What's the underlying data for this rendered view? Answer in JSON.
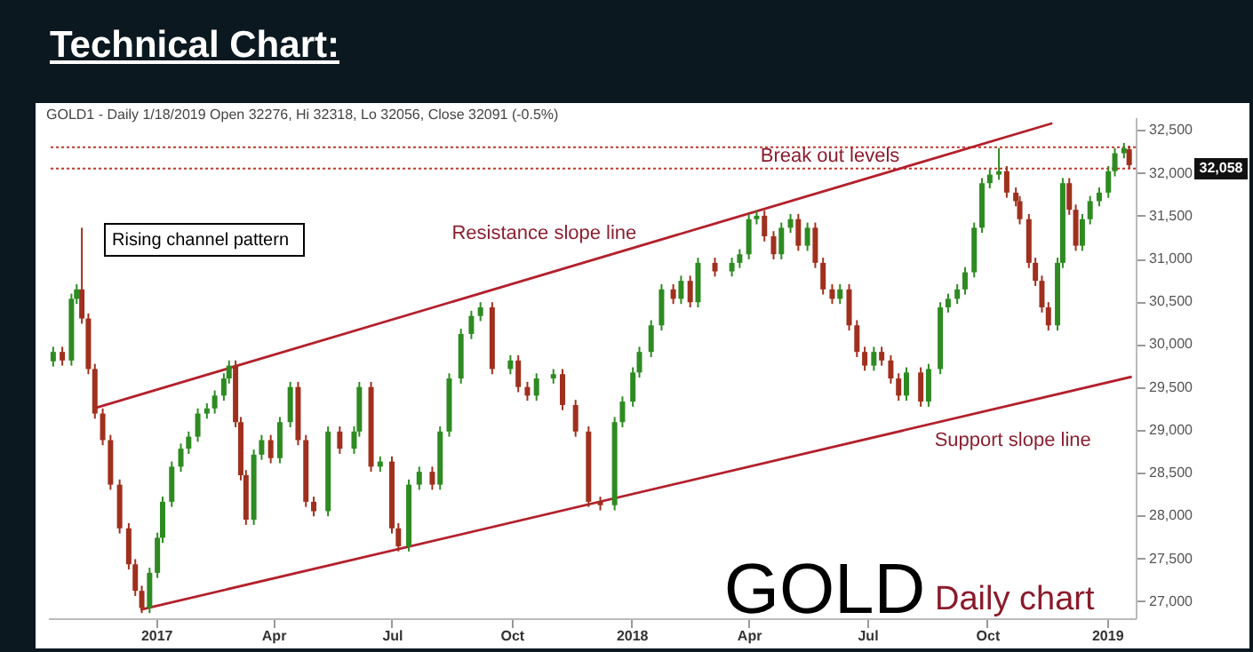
{
  "chart_data": {
    "type": "candlestick",
    "title": "Technical Chart:",
    "subtitle": "GOLD1 - Daily 1/18/2019 Open 32276, Hi 32318, Lo 32056, Close 32091 (-0.5%)",
    "xlim": [
      "2016-10-10",
      "2019-01-23"
    ],
    "xticks": [
      {
        "value": "2017-01-01",
        "label": "2017"
      },
      {
        "value": "2017-04-01",
        "label": "Apr"
      },
      {
        "value": "2017-07-01",
        "label": "Jul"
      },
      {
        "value": "2017-10-01",
        "label": "Oct"
      },
      {
        "value": "2018-01-01",
        "label": "2018"
      },
      {
        "value": "2018-04-01",
        "label": "Apr"
      },
      {
        "value": "2018-07-01",
        "label": "Jul"
      },
      {
        "value": "2018-10-01",
        "label": "Oct"
      },
      {
        "value": "2019-01-01",
        "label": "2019"
      }
    ],
    "ylim": [
      26800,
      32650
    ],
    "yticks": [
      {
        "value": 27000,
        "label": "27,000"
      },
      {
        "value": 27500,
        "label": "27,500"
      },
      {
        "value": 28000,
        "label": "28,000"
      },
      {
        "value": 28500,
        "label": "28,500"
      },
      {
        "value": 29000,
        "label": "29,000"
      },
      {
        "value": 29500,
        "label": "29,500"
      },
      {
        "value": 30000,
        "label": "30,000"
      },
      {
        "value": 30500,
        "label": "30,500"
      },
      {
        "value": 31000,
        "label": "31,000"
      },
      {
        "value": 31500,
        "label": "31,500"
      },
      {
        "value": 32000,
        "label": "32,000"
      },
      {
        "value": 32500,
        "label": "32,500"
      }
    ],
    "series": [
      {
        "type": "candlestick",
        "x": [
          "2016-10-14",
          "2016-10-21",
          "2016-10-28",
          "2016-11-01",
          "2016-11-05",
          "2016-11-10",
          "2016-11-15",
          "2016-11-21",
          "2016-11-27",
          "2016-12-04",
          "2016-12-11",
          "2016-12-16",
          "2016-12-21",
          "2016-12-27",
          "2017-01-02",
          "2017-01-06",
          "2017-01-13",
          "2017-01-20",
          "2017-01-26",
          "2017-02-02",
          "2017-02-09",
          "2017-02-15",
          "2017-02-22",
          "2017-02-26",
          "2017-03-03",
          "2017-03-07",
          "2017-03-11",
          "2017-03-17",
          "2017-03-23",
          "2017-03-30",
          "2017-04-06",
          "2017-04-14",
          "2017-04-20",
          "2017-04-26",
          "2017-05-02",
          "2017-05-13",
          "2017-05-22",
          "2017-06-02",
          "2017-06-06",
          "2017-06-15",
          "2017-06-22",
          "2017-07-01",
          "2017-07-06",
          "2017-07-14",
          "2017-07-22",
          "2017-08-01",
          "2017-08-07",
          "2017-08-14",
          "2017-08-23",
          "2017-08-31",
          "2017-09-07",
          "2017-09-16",
          "2017-09-30",
          "2017-10-06",
          "2017-10-13",
          "2017-10-20",
          "2017-11-02",
          "2017-11-09",
          "2017-11-19",
          "2017-11-29",
          "2017-12-08",
          "2017-12-19",
          "2017-12-25",
          "2018-01-02",
          "2018-01-07",
          "2018-01-16",
          "2018-01-24",
          "2018-02-02",
          "2018-02-08",
          "2018-02-15",
          "2018-02-21",
          "2018-03-06",
          "2018-03-19",
          "2018-03-25",
          "2018-04-01",
          "2018-04-07",
          "2018-04-13",
          "2018-04-20",
          "2018-04-26",
          "2018-05-03",
          "2018-05-09",
          "2018-05-16",
          "2018-05-22",
          "2018-05-28",
          "2018-06-04",
          "2018-06-10",
          "2018-06-17",
          "2018-06-23",
          "2018-06-29",
          "2018-07-06",
          "2018-07-12",
          "2018-07-19",
          "2018-07-25",
          "2018-07-31",
          "2018-08-11",
          "2018-08-17",
          "2018-08-26",
          "2018-09-01",
          "2018-09-08",
          "2018-09-14",
          "2018-09-21",
          "2018-09-27",
          "2018-10-03",
          "2018-10-10",
          "2018-10-16",
          "2018-10-23",
          "2018-10-26",
          "2018-11-02",
          "2018-11-07",
          "2018-11-12",
          "2018-11-17",
          "2018-11-24",
          "2018-11-28",
          "2018-12-03",
          "2018-12-08",
          "2018-12-13",
          "2018-12-19",
          "2018-12-26",
          "2019-01-02",
          "2019-01-07",
          "2019-01-14",
          "2019-01-18"
        ],
        "ohlc": [
          [
            29800,
            29970,
            29740,
            29910
          ],
          [
            29910,
            29970,
            29750,
            29810
          ],
          [
            29810,
            30590,
            29750,
            30530
          ],
          [
            30530,
            30700,
            30470,
            30640
          ],
          [
            30640,
            31360,
            30240,
            30300
          ],
          [
            30300,
            30360,
            29650,
            29710
          ],
          [
            29710,
            29770,
            29130,
            29190
          ],
          [
            29190,
            29250,
            28820,
            28880
          ],
          [
            28880,
            28940,
            28300,
            28360
          ],
          [
            28360,
            28420,
            27790,
            27850
          ],
          [
            27850,
            27910,
            27370,
            27430
          ],
          [
            27430,
            27490,
            27060,
            27120
          ],
          [
            27120,
            27180,
            26860,
            26920
          ],
          [
            26920,
            27390,
            26860,
            27330
          ],
          [
            27330,
            27800,
            27270,
            27740
          ],
          [
            27740,
            28220,
            27680,
            28160
          ],
          [
            28160,
            28630,
            28100,
            28570
          ],
          [
            28570,
            28840,
            28510,
            28780
          ],
          [
            28780,
            28980,
            28720,
            28920
          ],
          [
            28920,
            29250,
            28860,
            29190
          ],
          [
            29190,
            29310,
            29130,
            29250
          ],
          [
            29250,
            29460,
            29190,
            29400
          ],
          [
            29400,
            29660,
            29340,
            29600
          ],
          [
            29600,
            29810,
            29540,
            29750
          ],
          [
            29750,
            29810,
            29030,
            29090
          ],
          [
            29090,
            29150,
            28410,
            28470
          ],
          [
            28470,
            28530,
            27890,
            27950
          ],
          [
            27950,
            28770,
            27890,
            28710
          ],
          [
            28710,
            28940,
            28650,
            28880
          ],
          [
            28880,
            28940,
            28610,
            28670
          ],
          [
            28670,
            29150,
            28610,
            29090
          ],
          [
            29090,
            29560,
            29030,
            29500
          ],
          [
            29500,
            29560,
            28820,
            28880
          ],
          [
            28880,
            28940,
            28100,
            28160
          ],
          [
            28160,
            28220,
            27990,
            28050
          ],
          [
            28050,
            29040,
            27990,
            28980
          ],
          [
            28980,
            29040,
            28720,
            28780
          ],
          [
            28780,
            29040,
            28720,
            28980
          ],
          [
            28980,
            29560,
            28920,
            29500
          ],
          [
            29500,
            29560,
            28510,
            28570
          ],
          [
            28570,
            28690,
            28510,
            28630
          ],
          [
            28630,
            28690,
            27790,
            27850
          ],
          [
            27850,
            27910,
            27580,
            27640
          ],
          [
            27640,
            28420,
            27580,
            28360
          ],
          [
            28360,
            28570,
            28300,
            28510
          ],
          [
            28510,
            28570,
            28300,
            28360
          ],
          [
            28360,
            29040,
            28300,
            28980
          ],
          [
            28980,
            29660,
            28920,
            29600
          ],
          [
            29600,
            30180,
            29540,
            30120
          ],
          [
            30120,
            30390,
            30060,
            30330
          ],
          [
            30330,
            30490,
            30270,
            30430
          ],
          [
            30430,
            30490,
            29650,
            29710
          ],
          [
            29710,
            29870,
            29650,
            29810
          ],
          [
            29810,
            29870,
            29440,
            29500
          ],
          [
            29500,
            29560,
            29340,
            29400
          ],
          [
            29400,
            29660,
            29340,
            29600
          ],
          [
            29600,
            29710,
            29540,
            29650
          ],
          [
            29650,
            29710,
            29230,
            29290
          ],
          [
            29290,
            29350,
            28920,
            28980
          ],
          [
            28980,
            29040,
            28100,
            28160
          ],
          [
            28160,
            28220,
            28060,
            28120
          ],
          [
            28120,
            29150,
            28060,
            29090
          ],
          [
            29090,
            29390,
            29030,
            29330
          ],
          [
            29330,
            29730,
            29270,
            29670
          ],
          [
            29670,
            29970,
            29610,
            29910
          ],
          [
            29910,
            30280,
            29850,
            30220
          ],
          [
            30220,
            30700,
            30160,
            30640
          ],
          [
            30640,
            30700,
            30470,
            30530
          ],
          [
            30530,
            30800,
            30470,
            30740
          ],
          [
            30740,
            30800,
            30430,
            30490
          ],
          [
            30490,
            31010,
            30430,
            30950
          ],
          [
            30950,
            31010,
            30790,
            30850
          ],
          [
            30850,
            31010,
            30790,
            30950
          ],
          [
            30950,
            31110,
            30890,
            31050
          ],
          [
            31050,
            31520,
            30990,
            31460
          ],
          [
            31460,
            31560,
            31400,
            31500
          ],
          [
            31500,
            31560,
            31200,
            31260
          ],
          [
            31260,
            31320,
            30990,
            31050
          ],
          [
            31050,
            31420,
            30990,
            31360
          ],
          [
            31360,
            31520,
            31300,
            31460
          ],
          [
            31460,
            31520,
            31090,
            31150
          ],
          [
            31150,
            31420,
            31090,
            31360
          ],
          [
            31360,
            31420,
            30890,
            30950
          ],
          [
            30950,
            31010,
            30580,
            30640
          ],
          [
            30640,
            30700,
            30470,
            30530
          ],
          [
            30530,
            30700,
            30470,
            30640
          ],
          [
            30640,
            30700,
            30160,
            30220
          ],
          [
            30220,
            30280,
            29850,
            29910
          ],
          [
            29910,
            29970,
            29690,
            29750
          ],
          [
            29750,
            29970,
            29690,
            29910
          ],
          [
            29910,
            29970,
            29750,
            29810
          ],
          [
            29810,
            29870,
            29540,
            29600
          ],
          [
            29600,
            29660,
            29340,
            29400
          ],
          [
            29400,
            29730,
            29340,
            29670
          ],
          [
            29670,
            29730,
            29270,
            29330
          ],
          [
            29330,
            29770,
            29270,
            29710
          ],
          [
            29710,
            30490,
            29650,
            30430
          ],
          [
            30430,
            30590,
            30370,
            30530
          ],
          [
            30530,
            30700,
            30470,
            30640
          ],
          [
            30640,
            30900,
            30580,
            30840
          ],
          [
            30840,
            31420,
            30780,
            31360
          ],
          [
            31360,
            31940,
            31300,
            31880
          ],
          [
            31880,
            32040,
            31820,
            31980
          ],
          [
            31980,
            32290,
            31920,
            32020
          ],
          [
            32020,
            32080,
            31710,
            31770
          ],
          [
            31770,
            31830,
            31610,
            31670
          ],
          [
            31670,
            31730,
            31400,
            31460
          ],
          [
            31460,
            31520,
            30890,
            30950
          ],
          [
            30950,
            31010,
            30680,
            30740
          ],
          [
            30740,
            30800,
            30370,
            30430
          ],
          [
            30430,
            30490,
            30160,
            30220
          ],
          [
            30220,
            31010,
            30160,
            30950
          ],
          [
            30950,
            31940,
            30890,
            31880
          ],
          [
            31880,
            31940,
            31510,
            31570
          ],
          [
            31570,
            31630,
            31090,
            31150
          ],
          [
            31150,
            31520,
            31090,
            31460
          ],
          [
            31460,
            31730,
            31400,
            31670
          ],
          [
            31670,
            31830,
            31610,
            31770
          ],
          [
            31770,
            32080,
            31710,
            32020
          ],
          [
            32020,
            32290,
            31960,
            32230
          ],
          [
            32230,
            32350,
            32170,
            32290
          ],
          [
            32276,
            32318,
            32056,
            32091
          ]
        ],
        "colors": [
          "#2e8b22",
          "#a0301e",
          "#2e8b22",
          "#2e8b22",
          "#a0301e",
          "#a0301e",
          "#a0301e",
          "#a0301e",
          "#a0301e",
          "#a0301e",
          "#a0301e",
          "#a0301e",
          "#a0301e",
          "#2e8b22",
          "#2e8b22",
          "#2e8b22",
          "#2e8b22",
          "#2e8b22",
          "#2e8b22",
          "#2e8b22",
          "#2e8b22",
          "#2e8b22",
          "#2e8b22",
          "#2e8b22",
          "#a0301e",
          "#a0301e",
          "#a0301e",
          "#2e8b22",
          "#2e8b22",
          "#a0301e",
          "#2e8b22",
          "#2e8b22",
          "#a0301e",
          "#a0301e",
          "#a0301e",
          "#2e8b22",
          "#a0301e",
          "#2e8b22",
          "#2e8b22",
          "#a0301e",
          "#2e8b22",
          "#a0301e",
          "#a0301e",
          "#2e8b22",
          "#2e8b22",
          "#a0301e",
          "#2e8b22",
          "#2e8b22",
          "#2e8b22",
          "#2e8b22",
          "#2e8b22",
          "#a0301e",
          "#2e8b22",
          "#a0301e",
          "#a0301e",
          "#2e8b22",
          "#2e8b22",
          "#a0301e",
          "#a0301e",
          "#a0301e",
          "#a0301e",
          "#2e8b22",
          "#2e8b22",
          "#2e8b22",
          "#2e8b22",
          "#2e8b22",
          "#2e8b22",
          "#a0301e",
          "#2e8b22",
          "#a0301e",
          "#2e8b22",
          "#a0301e",
          "#2e8b22",
          "#2e8b22",
          "#2e8b22",
          "#2e8b22",
          "#a0301e",
          "#a0301e",
          "#2e8b22",
          "#2e8b22",
          "#a0301e",
          "#2e8b22",
          "#a0301e",
          "#a0301e",
          "#a0301e",
          "#2e8b22",
          "#a0301e",
          "#a0301e",
          "#a0301e",
          "#2e8b22",
          "#a0301e",
          "#a0301e",
          "#a0301e",
          "#2e8b22",
          "#a0301e",
          "#2e8b22",
          "#2e8b22",
          "#2e8b22",
          "#2e8b22",
          "#2e8b22",
          "#2e8b22",
          "#2e8b22",
          "#2e8b22",
          "#2e8b22",
          "#a0301e",
          "#a0301e",
          "#a0301e",
          "#a0301e",
          "#a0301e",
          "#a0301e",
          "#a0301e",
          "#2e8b22",
          "#2e8b22",
          "#a0301e",
          "#a0301e",
          "#2e8b22",
          "#2e8b22",
          "#2e8b22",
          "#2e8b22",
          "#2e8b22",
          "#2e8b22",
          "#a0301e"
        ]
      },
      {
        "type": "line",
        "name": "Resistance slope line",
        "color": "#b3202c",
        "x": [
          "2016-11-14",
          "2018-11-20"
        ],
        "values": [
          29250,
          32580
        ]
      },
      {
        "type": "line",
        "name": "Support slope line",
        "color": "#b3202c",
        "x": [
          "2016-12-20",
          "2019-01-20"
        ],
        "values": [
          26900,
          29620
        ]
      }
    ],
    "ref_lines": [
      {
        "axis": "y",
        "value": 32300,
        "color": "#c0392b",
        "line_style": "dotted"
      },
      {
        "axis": "y",
        "value": 32050,
        "color": "#c0392b",
        "line_style": "dotted"
      }
    ],
    "annotations": [
      "Rising channel pattern",
      "GOLD",
      "Daily chart",
      "Break out levels",
      "32,058"
    ],
    "grid": false
  }
}
